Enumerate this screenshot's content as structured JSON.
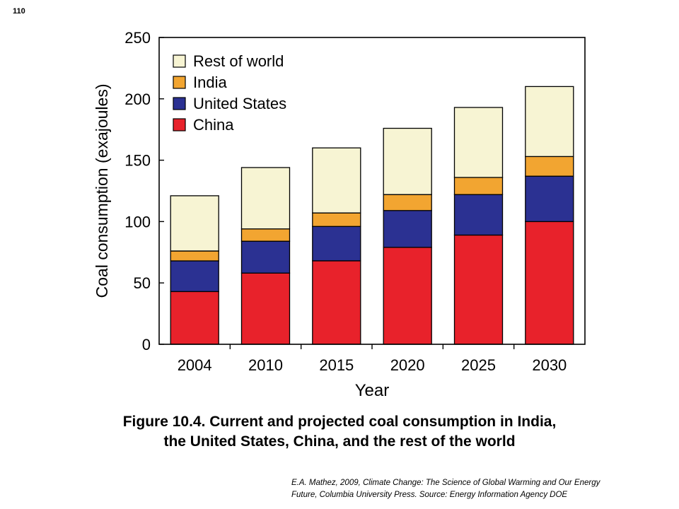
{
  "page_number": "110",
  "chart_data": {
    "type": "bar",
    "stacked": true,
    "categories": [
      "2004",
      "2010",
      "2015",
      "2020",
      "2025",
      "2030"
    ],
    "series": [
      {
        "name": "China",
        "color": "#e8222b",
        "values": [
          43,
          58,
          68,
          79,
          89,
          100
        ]
      },
      {
        "name": "United States",
        "color": "#2b3192",
        "values": [
          25,
          26,
          28,
          30,
          33,
          37
        ]
      },
      {
        "name": "India",
        "color": "#f2a531",
        "values": [
          8,
          10,
          11,
          13,
          14,
          16
        ]
      },
      {
        "name": "Rest of world",
        "color": "#f7f4d3",
        "values": [
          45,
          50,
          53,
          54,
          57,
          57
        ]
      }
    ],
    "ylim": [
      0,
      250
    ],
    "yticks": [
      "0",
      "50",
      "100",
      "150",
      "200",
      "250"
    ],
    "xlabel": "Year",
    "ylabel": "Coal consumption (exajoules)",
    "legend_position": "top-left",
    "legend_order": [
      "Rest of world",
      "India",
      "United States",
      "China"
    ],
    "grid": false
  },
  "caption": {
    "line1": "Figure 10.4.  Current and projected coal consumption in India,",
    "line2": "the United States, China, and the rest of the world"
  },
  "source": {
    "line1": "E.A. Mathez, 2009, Climate Change: The Science of Global Warming and Our Energy",
    "line2": "Future, Columbia University Press.  Source: Energy Information Agency DOE"
  }
}
